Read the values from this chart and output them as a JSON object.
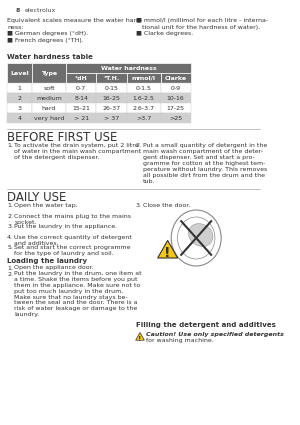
{
  "page_num": "8",
  "logo_text": "electrolux",
  "intro_text_left": "Equivalent scales measure the water hard-\nness:\n■ German degrees (°dH).\n■ French degrees (°TH).",
  "intro_text_right": "■ mmol/l (millimol for each litre - interna-\n   tional unit for the hardness of water).\n■ Clarke degrees.",
  "table_title": "Water hardness table",
  "table_header1": [
    "Level",
    "Type"
  ],
  "table_header2": "Water hardness",
  "table_subheader": [
    "°dH",
    "°T.H.",
    "mmol/l",
    "Clarke"
  ],
  "table_rows": [
    [
      "1",
      "soft",
      "0-7",
      "0-15",
      "0-1.5",
      "0-9"
    ],
    [
      "2",
      "medium",
      "8-14",
      "16-25",
      "1.6-2.5",
      "10-16"
    ],
    [
      "3",
      "hard",
      "15-21",
      "26-37",
      "2.6-3.7",
      "17-25"
    ],
    [
      "4",
      "very hard",
      "> 21",
      "> 37",
      ">3.7",
      ">25"
    ]
  ],
  "table_header_color": "#6d6d6d",
  "table_row_alt_color": "#d0d0d0",
  "table_row_white": "#ffffff",
  "section1_title": "BEFORE FIRST USE",
  "section1_items": [
    "To activate the drain system, put 2 litre\nof water in the main wash compartment\nof the detergent dispenser.",
    "Put a small quantity of detergent in the\nmain wash compartment of the deter-\ngent dispenser. Set and start a pro-\ngramme for cotton at the highest tem-\nperature without laundry. This removes\nall possible dirt from the drum and the\ntub."
  ],
  "section2_title": "DAILY USE",
  "section2_items_left": [
    "Open the water tap.",
    "Connect the mains plug to the mains\nsocket.",
    "Put the laundry in the appliance.",
    "Use the correct quantity of detergent\nand additives.",
    "Set and start the correct programme\nfor the type of laundry and soil."
  ],
  "section2_item_right": "Close the door.",
  "loading_title": "Loading the laundry",
  "loading_items": [
    "Open the appliance door.",
    "Put the laundry in the drum, one item at\na time. Shake the items before you put\nthem in the appliance. Make sure not to\nput too much laundry in the drum.\nMake sure that no laundry stays be-\ntween the seal and the door. There is a\nrisk of water leakage or damage to the\nlaundry."
  ],
  "filling_title": "Filling the detergent and additives",
  "caution_text": "Caution! Use only specified detergents\nfor washing machine.",
  "bg_color": "#ffffff",
  "text_color": "#333333",
  "header_line_color": "#999999"
}
